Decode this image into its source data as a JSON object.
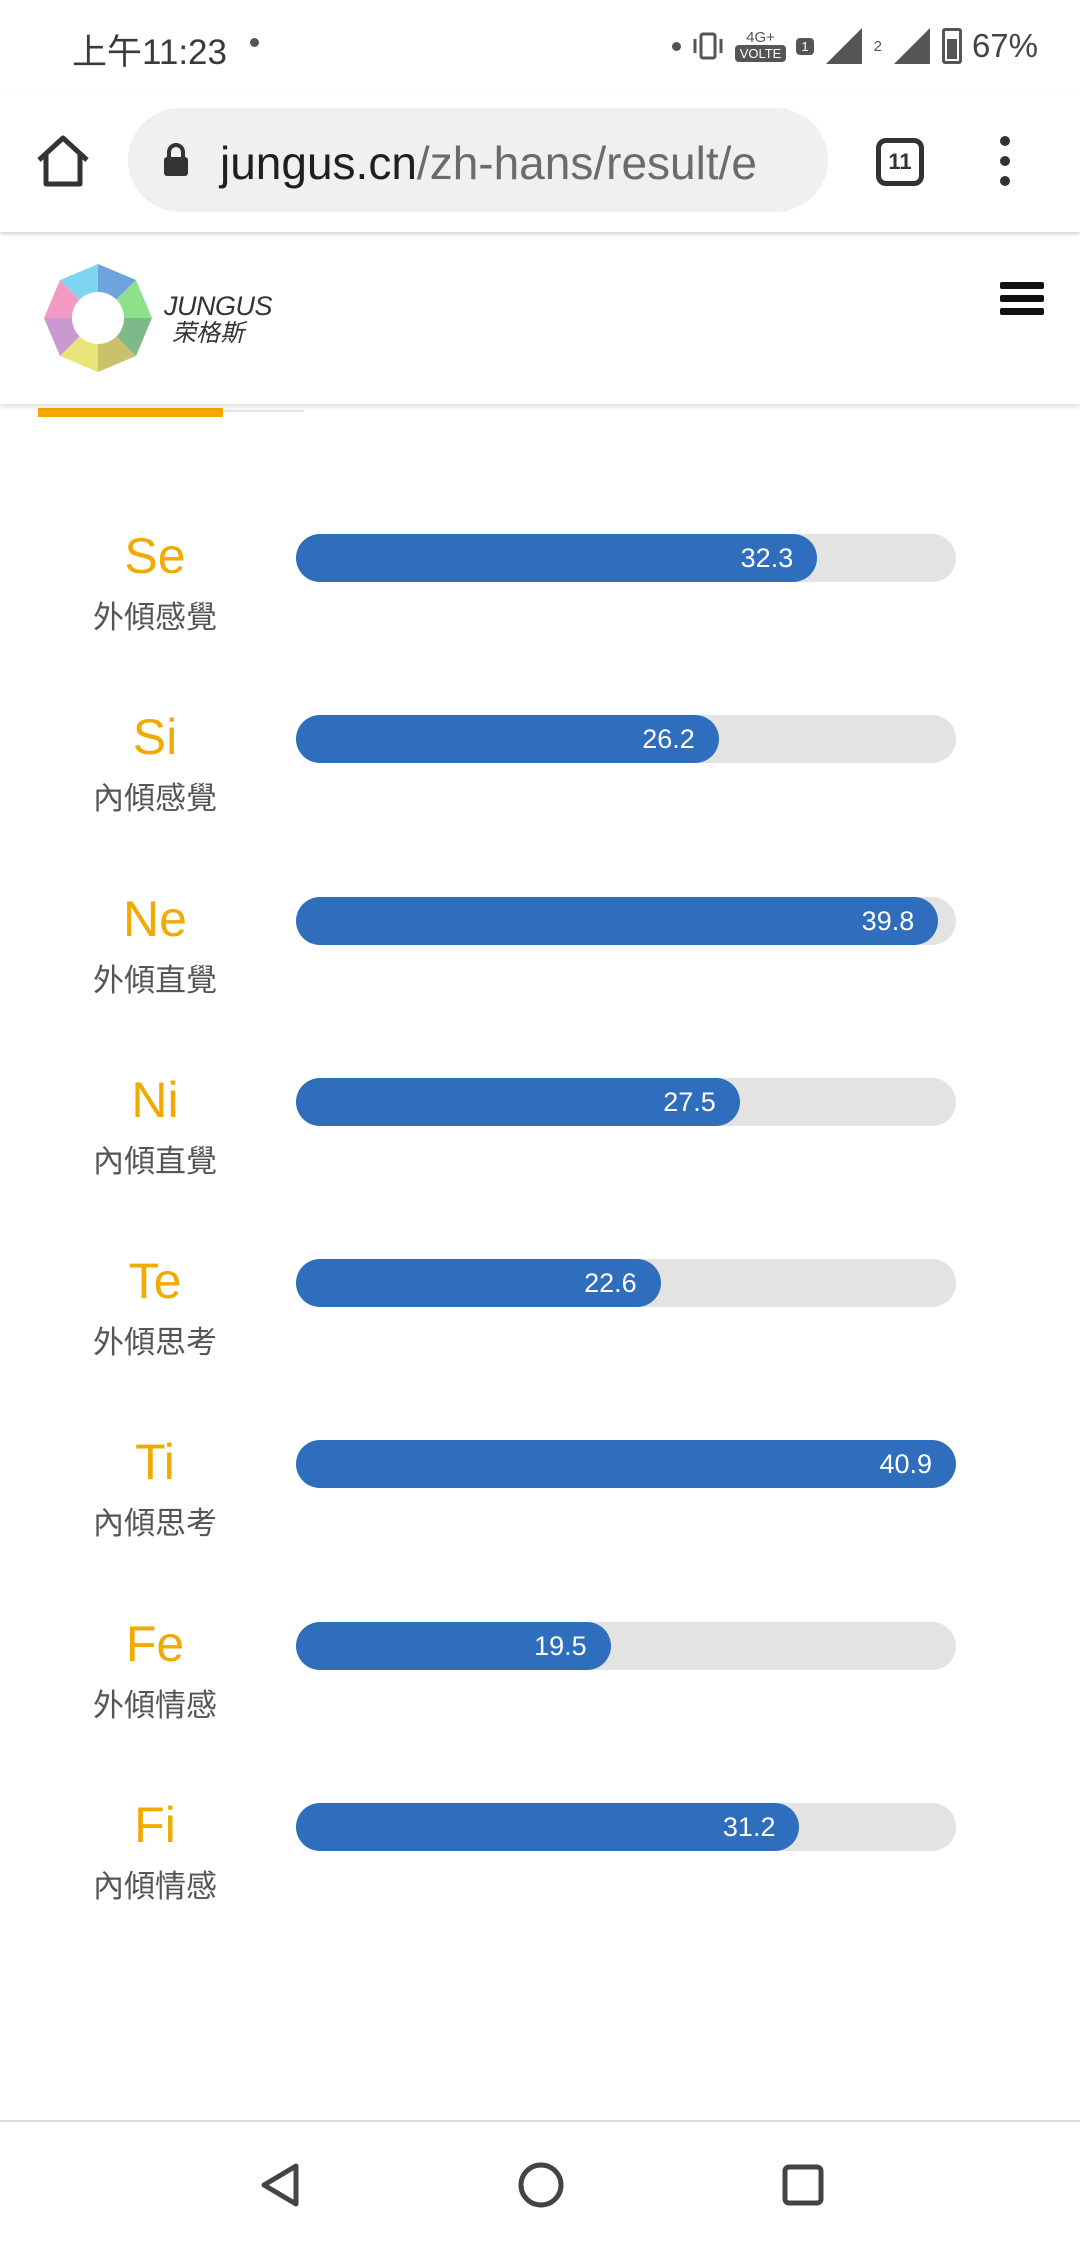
{
  "status_bar": {
    "time": "上午11:23",
    "network_label": "4G+",
    "volte_label": "VOLTE",
    "sim1": "1",
    "sim2": "2",
    "battery": "67%"
  },
  "browser": {
    "url_host": "jungus.cn",
    "url_path": "/zh-hans/result/e",
    "tab_count": "11"
  },
  "site": {
    "logo_en": "JUNGUS",
    "logo_zh": "荣格斯"
  },
  "colors": {
    "accent": "#f5a800",
    "bar_fill": "#2f6dbd",
    "bar_track": "#e3e3e3",
    "code_color": "#f0aa00"
  },
  "bar_max": 40.9,
  "functions": [
    {
      "code": "Se",
      "name": "外傾感覺",
      "value": 32.3
    },
    {
      "code": "Si",
      "name": "內傾感覺",
      "value": 26.2
    },
    {
      "code": "Ne",
      "name": "外傾直覺",
      "value": 39.8
    },
    {
      "code": "Ni",
      "name": "內傾直覺",
      "value": 27.5
    },
    {
      "code": "Te",
      "name": "外傾思考",
      "value": 22.6
    },
    {
      "code": "Ti",
      "name": "內傾思考",
      "value": 40.9
    },
    {
      "code": "Fe",
      "name": "外傾情感",
      "value": 19.5
    },
    {
      "code": "Fi",
      "name": "內傾情感",
      "value": 31.2
    }
  ]
}
